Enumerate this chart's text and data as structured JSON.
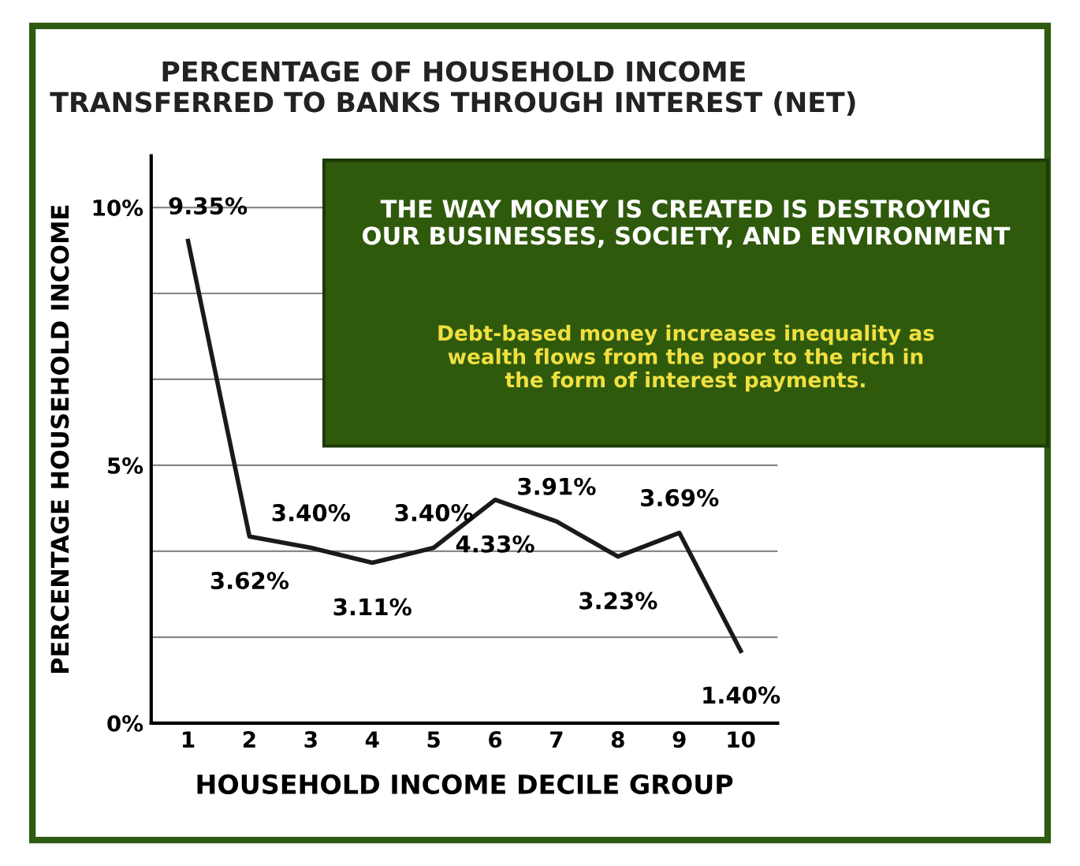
{
  "chart_data": {
    "type": "line",
    "title": "PERCENTAGE OF HOUSEHOLD INCOME\nTRANSFERRED TO BANKS THROUGH INTEREST (NET)",
    "xlabel": "HOUSEHOLD INCOME DECILE GROUP",
    "ylabel": "PERCENTAGE HOUSEHOLD INCOME",
    "categories": [
      "1",
      "2",
      "3",
      "4",
      "5",
      "6",
      "7",
      "8",
      "9",
      "10"
    ],
    "series": [
      {
        "color": "#1a1a1a",
        "values": [
          9.35,
          3.62,
          3.4,
          3.11,
          3.4,
          4.33,
          3.91,
          3.23,
          3.69,
          1.4
        ],
        "value_labels": [
          "9.35%",
          "3.62%",
          "3.40%",
          "3.11%",
          "3.40%",
          "4.33%",
          "3.91%",
          "3.23%",
          "3.69%",
          "1.40%"
        ]
      }
    ],
    "ylim": [
      0,
      11
    ],
    "yticks": [
      {
        "value": 0,
        "label": "0%"
      },
      {
        "value": 1.667,
        "label": null
      },
      {
        "value": 3.333,
        "label": null
      },
      {
        "value": 5,
        "label": "5%"
      },
      {
        "value": 6.667,
        "label": null
      },
      {
        "value": 8.333,
        "label": null
      },
      {
        "value": 10,
        "label": "10%"
      }
    ],
    "grid": "y",
    "legend": false,
    "marker": "none",
    "line_style": "solid",
    "annotations": [
      "THE WAY MONEY IS CREATED IS DESTROYING\nOUR BUSINESSES, SOCIETY, AND ENVIRONMENT",
      "Debt-based money increases inequality as\nwealth flows from the poor to the rich in\nthe form of interest payments."
    ]
  }
}
